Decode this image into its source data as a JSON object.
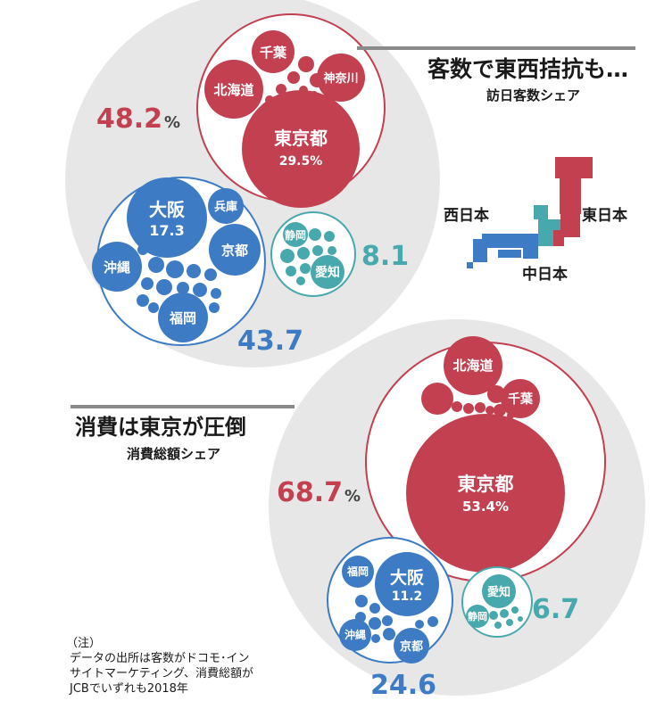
{
  "colors": {
    "east": "#c2404f",
    "west": "#3d7cc4",
    "central": "#47a9ad",
    "bigcircle": "#e7e7e7",
    "title_rule": "#8a8a8a",
    "text": "#1a1a1a"
  },
  "top": {
    "title": "客数で東西拮抗も…",
    "subtitle": "訪日客数シェア",
    "east_total": "48.2",
    "west_total": "43.7",
    "central_total": "8.1",
    "pct_sign": "%",
    "labels": {
      "tokyo": "東京都",
      "tokyo_value": "29.5%",
      "hokkaido": "北海道",
      "chiba": "千葉",
      "kanagawa": "神奈川",
      "osaka": "大阪",
      "osaka_value": "17.3",
      "hyogo": "兵庫",
      "kyoto": "京都",
      "okinawa": "沖縄",
      "fukuoka": "福岡",
      "shizuoka": "静岡",
      "aichi": "愛知"
    }
  },
  "bottom": {
    "title": "消費は東京が圧倒",
    "subtitle": "消費総額シェア",
    "east_total": "68.7",
    "west_total": "24.6",
    "central_total": "6.7",
    "pct_sign": "%",
    "labels": {
      "tokyo": "東京都",
      "tokyo_value": "53.4%",
      "hokkaido": "北海道",
      "chiba": "千葉",
      "osaka": "大阪",
      "osaka_value": "11.2",
      "fukuoka": "福岡",
      "okinawa": "沖縄",
      "kyoto": "京都",
      "aichi": "愛知",
      "shizuoka": "静岡"
    }
  },
  "map_legend": {
    "west": "西日本",
    "east": "東日本",
    "central": "中日本"
  },
  "note": {
    "heading": "（注）",
    "lines": [
      "データの出所は客数がドコモ･イン",
      "サイトマーケティング、消費総額が",
      "JCBでいずれも2018年"
    ]
  },
  "chart_data": [
    {
      "type": "bubble",
      "title": "客数で東西拮抗も…",
      "subtitle": "訪日客数シェア",
      "unit": "%",
      "groups": [
        {
          "name": "東日本",
          "total": 48.2,
          "items": [
            {
              "name": "東京都",
              "value": 29.5
            },
            {
              "name": "北海道"
            },
            {
              "name": "千葉"
            },
            {
              "name": "神奈川"
            }
          ]
        },
        {
          "name": "西日本",
          "total": 43.7,
          "items": [
            {
              "name": "大阪",
              "value": 17.3
            },
            {
              "name": "兵庫"
            },
            {
              "name": "京都"
            },
            {
              "name": "沖縄"
            },
            {
              "name": "福岡"
            }
          ]
        },
        {
          "name": "中日本",
          "total": 8.1,
          "items": [
            {
              "name": "静岡"
            },
            {
              "name": "愛知"
            }
          ]
        }
      ]
    },
    {
      "type": "bubble",
      "title": "消費は東京が圧倒",
      "subtitle": "消費総額シェア",
      "unit": "%",
      "groups": [
        {
          "name": "東日本",
          "total": 68.7,
          "items": [
            {
              "name": "東京都",
              "value": 53.4
            },
            {
              "name": "北海道"
            },
            {
              "name": "千葉"
            }
          ]
        },
        {
          "name": "西日本",
          "total": 24.6,
          "items": [
            {
              "name": "大阪",
              "value": 11.2
            },
            {
              "name": "福岡"
            },
            {
              "name": "沖縄"
            },
            {
              "name": "京都"
            }
          ]
        },
        {
          "name": "中日本",
          "total": 6.7,
          "items": [
            {
              "name": "愛知"
            },
            {
              "name": "静岡"
            }
          ]
        }
      ]
    }
  ]
}
